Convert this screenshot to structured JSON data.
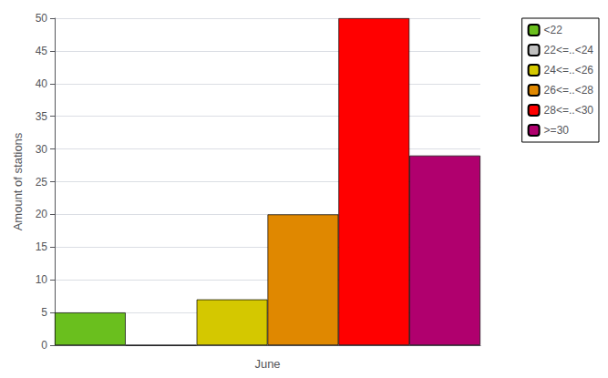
{
  "chart_data": {
    "type": "bar",
    "categories": [
      "<22",
      "22<=..<24",
      "24<=..<26",
      "26<=..<28",
      "28<=..<30",
      ">=30"
    ],
    "values": [
      5,
      0,
      7,
      20,
      50,
      29
    ],
    "colors": [
      "#6abf1e",
      "#c0c0c0",
      "#d4c800",
      "#e08800",
      "#ff0000",
      "#b0006e"
    ],
    "xlabel": "June",
    "ylabel": "Amount of stations",
    "ylim": [
      0,
      50
    ],
    "yticks": [
      0,
      5,
      10,
      15,
      20,
      25,
      30,
      35,
      40,
      45,
      50
    ],
    "grid": true,
    "legend": "right",
    "tick_labels": "y"
  }
}
